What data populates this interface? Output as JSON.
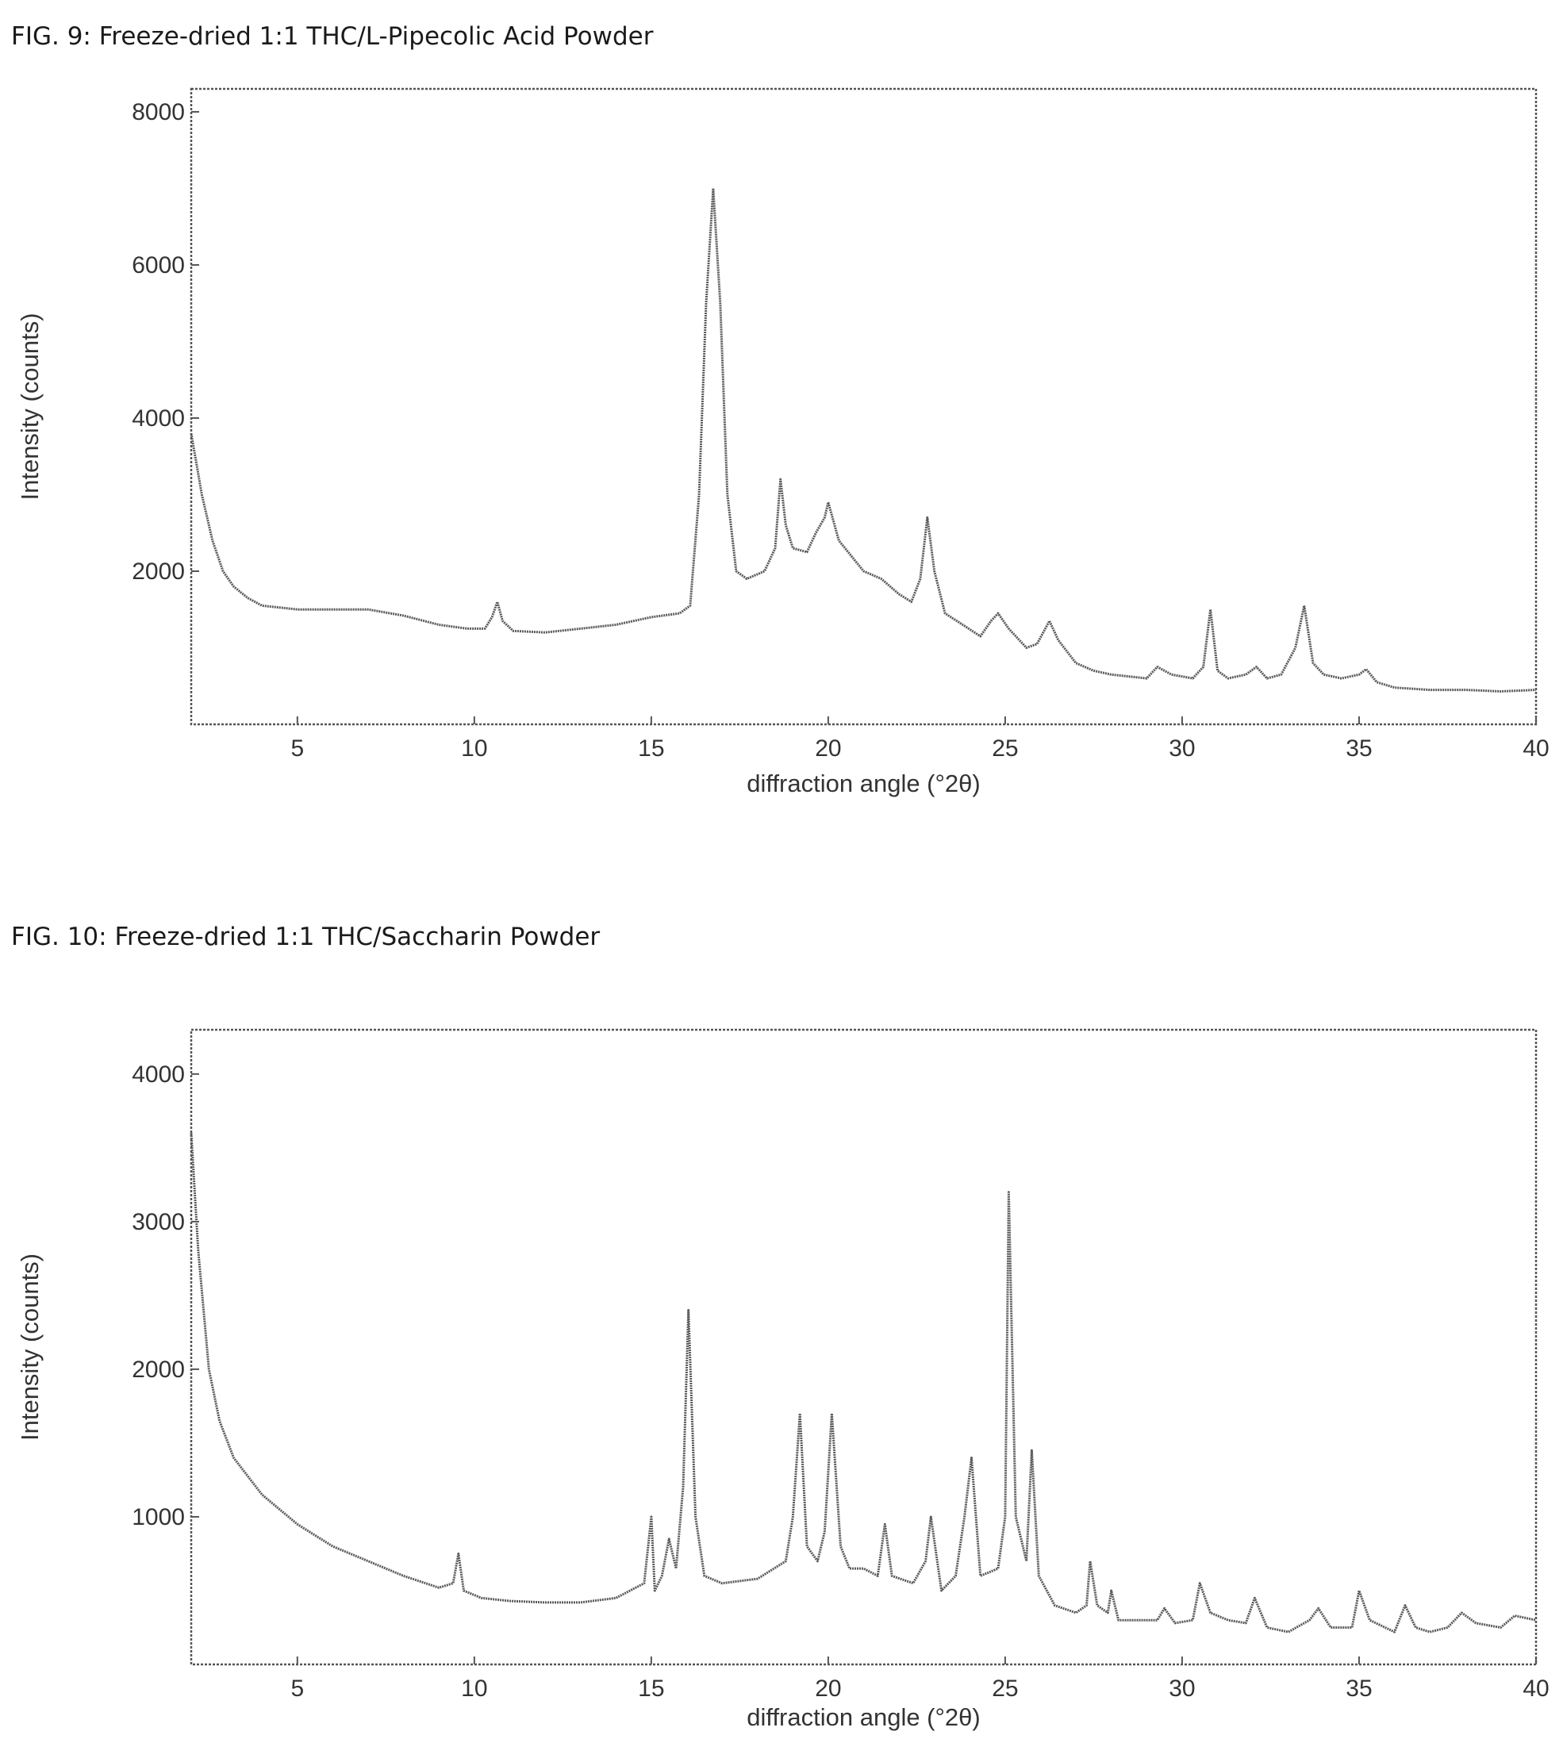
{
  "figures": [
    {
      "title": "FIG. 9: Freeze-dried 1:1 THC/L-Pipecolic Acid Powder"
    },
    {
      "title": "FIG. 10: Freeze-dried 1:1 THC/Saccharin Powder"
    }
  ],
  "colors": {
    "line": "#5a5a5a",
    "frame": "#555555",
    "text": "#333333"
  },
  "chart_data": [
    {
      "type": "line",
      "title": "FIG. 9: Freeze-dried 1:1 THC/L-Pipecolic Acid Powder",
      "xlabel": "diffraction angle (°2θ)",
      "ylabel": "Intensity (counts)",
      "xlim": [
        2,
        40
      ],
      "ylim": [
        0,
        8300
      ],
      "xticks": [
        5,
        10,
        15,
        20,
        25,
        30,
        35,
        40
      ],
      "yticks": [
        2000,
        4000,
        6000,
        8000
      ],
      "grid": false,
      "series": [
        {
          "x": [
            2.0,
            2.3,
            2.6,
            2.9,
            3.2,
            3.6,
            4.0,
            5.0,
            6.0,
            7.0,
            8.0,
            9.0,
            9.8,
            10.3,
            10.5,
            10.65,
            10.8,
            11.1,
            12.0,
            13.0,
            14.0,
            15.0,
            15.8,
            16.1,
            16.35,
            16.55,
            16.75,
            16.95,
            17.15,
            17.4,
            17.7,
            18.2,
            18.5,
            18.65,
            18.8,
            19.0,
            19.4,
            19.65,
            19.9,
            20.0,
            20.3,
            21.0,
            21.5,
            22.0,
            22.35,
            22.6,
            22.8,
            23.0,
            23.3,
            23.8,
            24.3,
            24.6,
            24.8,
            25.1,
            25.6,
            25.9,
            26.25,
            26.5,
            27.0,
            27.5,
            28.0,
            29.0,
            29.3,
            29.7,
            30.3,
            30.6,
            30.8,
            31.0,
            31.3,
            31.8,
            32.1,
            32.4,
            32.8,
            33.2,
            33.45,
            33.7,
            34.0,
            34.5,
            35.0,
            35.2,
            35.5,
            36.0,
            37.0,
            38.0,
            39.0,
            40.0
          ],
          "y": [
            3800,
            3000,
            2400,
            2000,
            1800,
            1650,
            1550,
            1500,
            1500,
            1500,
            1420,
            1300,
            1250,
            1250,
            1400,
            1600,
            1350,
            1220,
            1200,
            1250,
            1300,
            1400,
            1450,
            1550,
            3000,
            5500,
            7000,
            5500,
            3000,
            2000,
            1900,
            2000,
            2300,
            3200,
            2600,
            2300,
            2250,
            2500,
            2700,
            2900,
            2400,
            2000,
            1900,
            1700,
            1600,
            1900,
            2700,
            2000,
            1450,
            1300,
            1150,
            1350,
            1450,
            1250,
            1000,
            1050,
            1350,
            1100,
            800,
            700,
            650,
            600,
            750,
            650,
            600,
            750,
            1500,
            700,
            600,
            650,
            750,
            600,
            650,
            1000,
            1550,
            800,
            650,
            600,
            650,
            720,
            550,
            480,
            450,
            450,
            430,
            450
          ]
        }
      ]
    },
    {
      "type": "line",
      "title": "FIG. 10: Freeze-dried 1:1 THC/Saccharin Powder",
      "xlabel": "diffraction angle (°2θ)",
      "ylabel": "Intensity (counts)",
      "xlim": [
        2,
        40
      ],
      "ylim": [
        0,
        4300
      ],
      "xticks": [
        5,
        10,
        15,
        20,
        25,
        30,
        35,
        40
      ],
      "yticks": [
        1000,
        2000,
        3000,
        4000
      ],
      "grid": false,
      "series": [
        {
          "x": [
            2.0,
            2.2,
            2.5,
            2.8,
            3.2,
            4.0,
            5.0,
            6.0,
            7.0,
            8.0,
            9.0,
            9.4,
            9.55,
            9.7,
            10.2,
            11.0,
            12.0,
            13.0,
            14.0,
            14.8,
            15.0,
            15.1,
            15.3,
            15.5,
            15.7,
            15.9,
            16.05,
            16.25,
            16.5,
            17.0,
            18.0,
            18.8,
            19.0,
            19.2,
            19.4,
            19.7,
            19.9,
            20.1,
            20.35,
            20.6,
            21.0,
            21.4,
            21.6,
            21.8,
            22.4,
            22.75,
            22.9,
            23.2,
            23.6,
            23.85,
            24.05,
            24.3,
            24.8,
            25.0,
            25.1,
            25.3,
            25.6,
            25.75,
            25.95,
            26.4,
            27.0,
            27.3,
            27.4,
            27.6,
            27.9,
            28.0,
            28.2,
            28.6,
            29.3,
            29.5,
            29.8,
            30.3,
            30.5,
            30.8,
            31.3,
            31.8,
            32.05,
            32.4,
            33.0,
            33.6,
            33.85,
            34.2,
            34.8,
            35.0,
            35.3,
            36.0,
            36.3,
            36.6,
            37.0,
            37.5,
            37.9,
            38.3,
            39.0,
            39.4,
            40.0
          ],
          "y": [
            3600,
            2800,
            2000,
            1650,
            1400,
            1150,
            950,
            800,
            700,
            600,
            520,
            550,
            750,
            500,
            450,
            430,
            420,
            420,
            450,
            550,
            1000,
            500,
            600,
            850,
            650,
            1200,
            2400,
            1000,
            600,
            550,
            580,
            700,
            1000,
            1700,
            800,
            700,
            900,
            1700,
            800,
            650,
            650,
            600,
            950,
            600,
            550,
            700,
            1000,
            500,
            600,
            1000,
            1400,
            600,
            650,
            1000,
            3200,
            1000,
            700,
            1450,
            600,
            400,
            350,
            400,
            700,
            400,
            350,
            500,
            300,
            300,
            300,
            380,
            280,
            300,
            550,
            350,
            300,
            280,
            450,
            250,
            220,
            300,
            380,
            250,
            250,
            500,
            300,
            220,
            400,
            250,
            220,
            250,
            350,
            280,
            250,
            330,
            300
          ]
        }
      ]
    }
  ]
}
